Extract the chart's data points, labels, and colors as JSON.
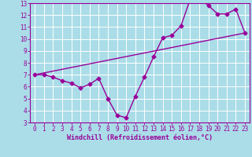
{
  "title": "",
  "xlabel": "Windchill (Refroidissement éolien,°C)",
  "background_color": "#aadde8",
  "line_color": "#990099",
  "grid_color": "#ffffff",
  "xlim": [
    -0.5,
    23.5
  ],
  "ylim": [
    3,
    13
  ],
  "xticks": [
    0,
    1,
    2,
    3,
    4,
    5,
    6,
    7,
    8,
    9,
    10,
    11,
    12,
    13,
    14,
    15,
    16,
    17,
    18,
    19,
    20,
    21,
    22,
    23
  ],
  "yticks": [
    3,
    4,
    5,
    6,
    7,
    8,
    9,
    10,
    11,
    12,
    13
  ],
  "line1_x": [
    0,
    1,
    2,
    3,
    4,
    5,
    6,
    7,
    8,
    9,
    10,
    11,
    12,
    13,
    14,
    15,
    16,
    17,
    18,
    19,
    20,
    21,
    22,
    23
  ],
  "line1_y": [
    7.0,
    7.0,
    6.8,
    6.5,
    6.3,
    5.9,
    6.2,
    6.7,
    5.0,
    3.6,
    3.4,
    5.2,
    6.8,
    8.5,
    10.1,
    10.3,
    11.1,
    13.3,
    13.4,
    12.8,
    12.1,
    12.1,
    12.5,
    10.5
  ],
  "line2_x": [
    0,
    23
  ],
  "line2_y": [
    7.0,
    10.5
  ],
  "marker": "D",
  "markersize": 2.5,
  "linewidth": 1.0,
  "tick_fontsize": 5.5,
  "xlabel_fontsize": 6.0
}
